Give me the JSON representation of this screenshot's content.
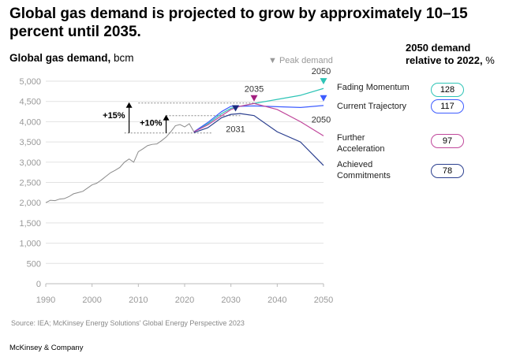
{
  "title": "Global gas demand is projected to grow by approximately 10–15 percent until 2035.",
  "subtitle_bold": "Global gas demand,",
  "subtitle_unit": "bcm",
  "right_header_line1": "2050 demand",
  "right_header_line2_bold": "relative to 2022,",
  "right_header_unit": "%",
  "peak_legend": "▼ Peak demand",
  "source": "Source: IEA; McKinsey Energy Solutions' Global Energy Perspective 2023",
  "brand": "McKinsey & Company",
  "chart_data": {
    "type": "line",
    "ylim": [
      0,
      5000
    ],
    "xlim": [
      1990,
      2050
    ],
    "grid": true,
    "yticks": [
      "0",
      "500",
      "1,000",
      "1,500",
      "2,000",
      "2,500",
      "3,000",
      "3,500",
      "4,000",
      "4,500",
      "5,000"
    ],
    "xticks": [
      "1990",
      "2000",
      "2010",
      "2020",
      "2030",
      "2040",
      "2050"
    ],
    "colors": {
      "historical": "#8a8a8a"
    },
    "historical": {
      "x": [
        1990,
        1991,
        1992,
        1993,
        1994,
        1995,
        1996,
        1997,
        1998,
        1999,
        2000,
        2001,
        2002,
        2003,
        2004,
        2005,
        2006,
        2007,
        2008,
        2009,
        2010,
        2011,
        2012,
        2013,
        2014,
        2015,
        2016,
        2017,
        2018,
        2019,
        2020,
        2021,
        2022
      ],
      "y": [
        2000,
        2060,
        2050,
        2090,
        2100,
        2150,
        2220,
        2250,
        2280,
        2360,
        2440,
        2480,
        2560,
        2650,
        2740,
        2800,
        2870,
        3000,
        3080,
        3000,
        3260,
        3330,
        3410,
        3440,
        3450,
        3530,
        3620,
        3750,
        3900,
        3930,
        3870,
        3950,
        3750
      ]
    },
    "scenario_x": [
      2022,
      2025,
      2028,
      2030,
      2032,
      2035,
      2040,
      2045,
      2050
    ],
    "series": [
      {
        "name": "Fading Momentum",
        "color": "#2ec4b6",
        "relative_2050": "128",
        "y": [
          3750,
          3950,
          4200,
          4330,
          4380,
          4450,
          4550,
          4650,
          4820
        ]
      },
      {
        "name": "Current Trajectory",
        "color": "#3d5cff",
        "relative_2050": "117",
        "y": [
          3750,
          3980,
          4250,
          4380,
          4380,
          4390,
          4370,
          4350,
          4400
        ]
      },
      {
        "name": "Further Acceleration",
        "color": "#c0479b",
        "relative_2050": "97",
        "y": [
          3750,
          3920,
          4150,
          4300,
          4380,
          4450,
          4300,
          4000,
          3650
        ]
      },
      {
        "name": "Achieved Commitments",
        "color": "#2b3f8f",
        "relative_2050": "78",
        "y": [
          3730,
          3850,
          4100,
          4180,
          4200,
          4150,
          3750,
          3500,
          2920
        ]
      }
    ],
    "peaks": [
      {
        "label": "2031",
        "x": 2031,
        "y": 4250,
        "color": "#1a2a80"
      },
      {
        "label": "2035",
        "x": 2035,
        "y": 4500,
        "color": "#a3207f"
      },
      {
        "label": "2050",
        "x": 2050,
        "y": 4920,
        "color": "#2ec4b6"
      },
      {
        "label": "2050",
        "x": 2050,
        "y": 4500,
        "color": "#3d5cff"
      }
    ],
    "annotations": [
      {
        "label": "+15%",
        "x": 2008,
        "from": 3720,
        "to": 4460
      },
      {
        "label": "+10%",
        "x": 2016,
        "from": 3720,
        "to": 4150
      }
    ]
  }
}
